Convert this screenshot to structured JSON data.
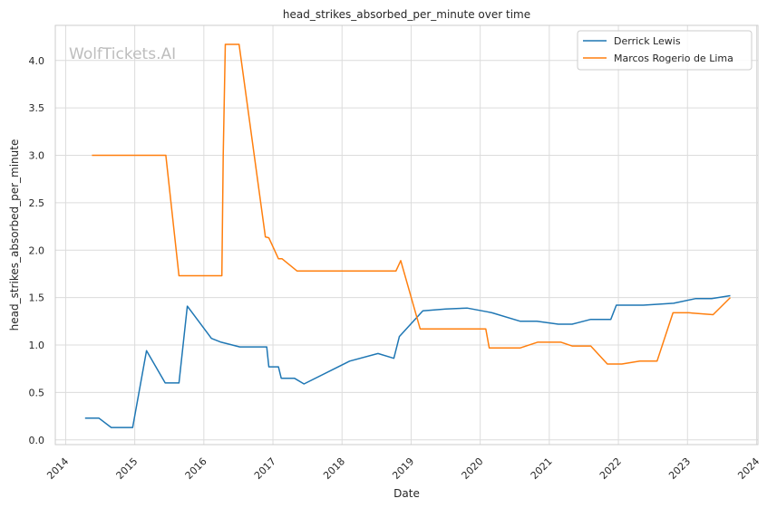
{
  "chart_data": {
    "type": "line",
    "title": "head_strikes_absorbed_per_minute over time",
    "xlabel": "Date",
    "ylabel": "head_strikes_absorbed_per_minute",
    "watermark": "WolfTickets.AI",
    "xlim": [
      2013.85,
      2024.02
    ],
    "ylim": [
      -0.05,
      4.37
    ],
    "x_ticks": [
      2014,
      2015,
      2016,
      2017,
      2018,
      2019,
      2020,
      2021,
      2022,
      2023,
      2024
    ],
    "y_ticks": [
      0.0,
      0.5,
      1.0,
      1.5,
      2.0,
      2.5,
      3.0,
      3.5,
      4.0
    ],
    "y_tick_labels": [
      "0.0",
      "0.5",
      "1.0",
      "1.5",
      "2.0",
      "2.5",
      "3.0",
      "3.5",
      "4.0"
    ],
    "grid": true,
    "legend_position": "top-right",
    "series": [
      {
        "name": "Derrick Lewis",
        "color": "#1f77b4",
        "x": [
          2014.28,
          2014.48,
          2014.66,
          2014.97,
          2015.17,
          2015.44,
          2015.64,
          2015.76,
          2016.11,
          2016.25,
          2016.36,
          2016.52,
          2016.68,
          2016.91,
          2016.94,
          2017.08,
          2017.12,
          2017.31,
          2017.45,
          2018.11,
          2018.52,
          2018.75,
          2018.83,
          2019.17,
          2019.5,
          2019.81,
          2020.1,
          2020.17,
          2020.58,
          2020.82,
          2021.13,
          2021.33,
          2021.6,
          2021.89,
          2021.97,
          2022.36,
          2022.57,
          2022.8,
          2023.12,
          2023.35,
          2023.62
        ],
        "values": [
          0.23,
          0.23,
          0.13,
          0.13,
          0.94,
          0.6,
          0.6,
          1.41,
          1.07,
          1.03,
          1.01,
          0.98,
          0.98,
          0.98,
          0.77,
          0.77,
          0.65,
          0.65,
          0.59,
          0.83,
          0.91,
          0.86,
          1.09,
          1.36,
          1.38,
          1.39,
          1.35,
          1.34,
          1.25,
          1.25,
          1.22,
          1.22,
          1.27,
          1.27,
          1.42,
          1.42,
          1.43,
          1.44,
          1.49,
          1.49,
          1.52
        ]
      },
      {
        "name": "Marcos Rogerio de Lima",
        "color": "#ff7f0e",
        "x": [
          2014.38,
          2015.45,
          2015.64,
          2016.26,
          2016.28,
          2016.31,
          2016.51,
          2016.89,
          2016.94,
          2017.08,
          2017.13,
          2017.35,
          2018.78,
          2018.85,
          2019.13,
          2020.08,
          2020.13,
          2020.58,
          2020.83,
          2021.17,
          2021.33,
          2021.6,
          2021.84,
          2022.05,
          2022.31,
          2022.56,
          2022.79,
          2023.02,
          2023.37,
          2023.62
        ],
        "values": [
          3.0,
          3.0,
          1.73,
          1.73,
          3.0,
          4.17,
          4.17,
          2.14,
          2.13,
          1.91,
          1.91,
          1.78,
          1.78,
          1.89,
          1.17,
          1.17,
          0.97,
          0.97,
          1.03,
          1.03,
          0.99,
          0.99,
          0.8,
          0.8,
          0.83,
          0.83,
          1.34,
          1.34,
          1.32,
          1.5
        ]
      }
    ]
  }
}
